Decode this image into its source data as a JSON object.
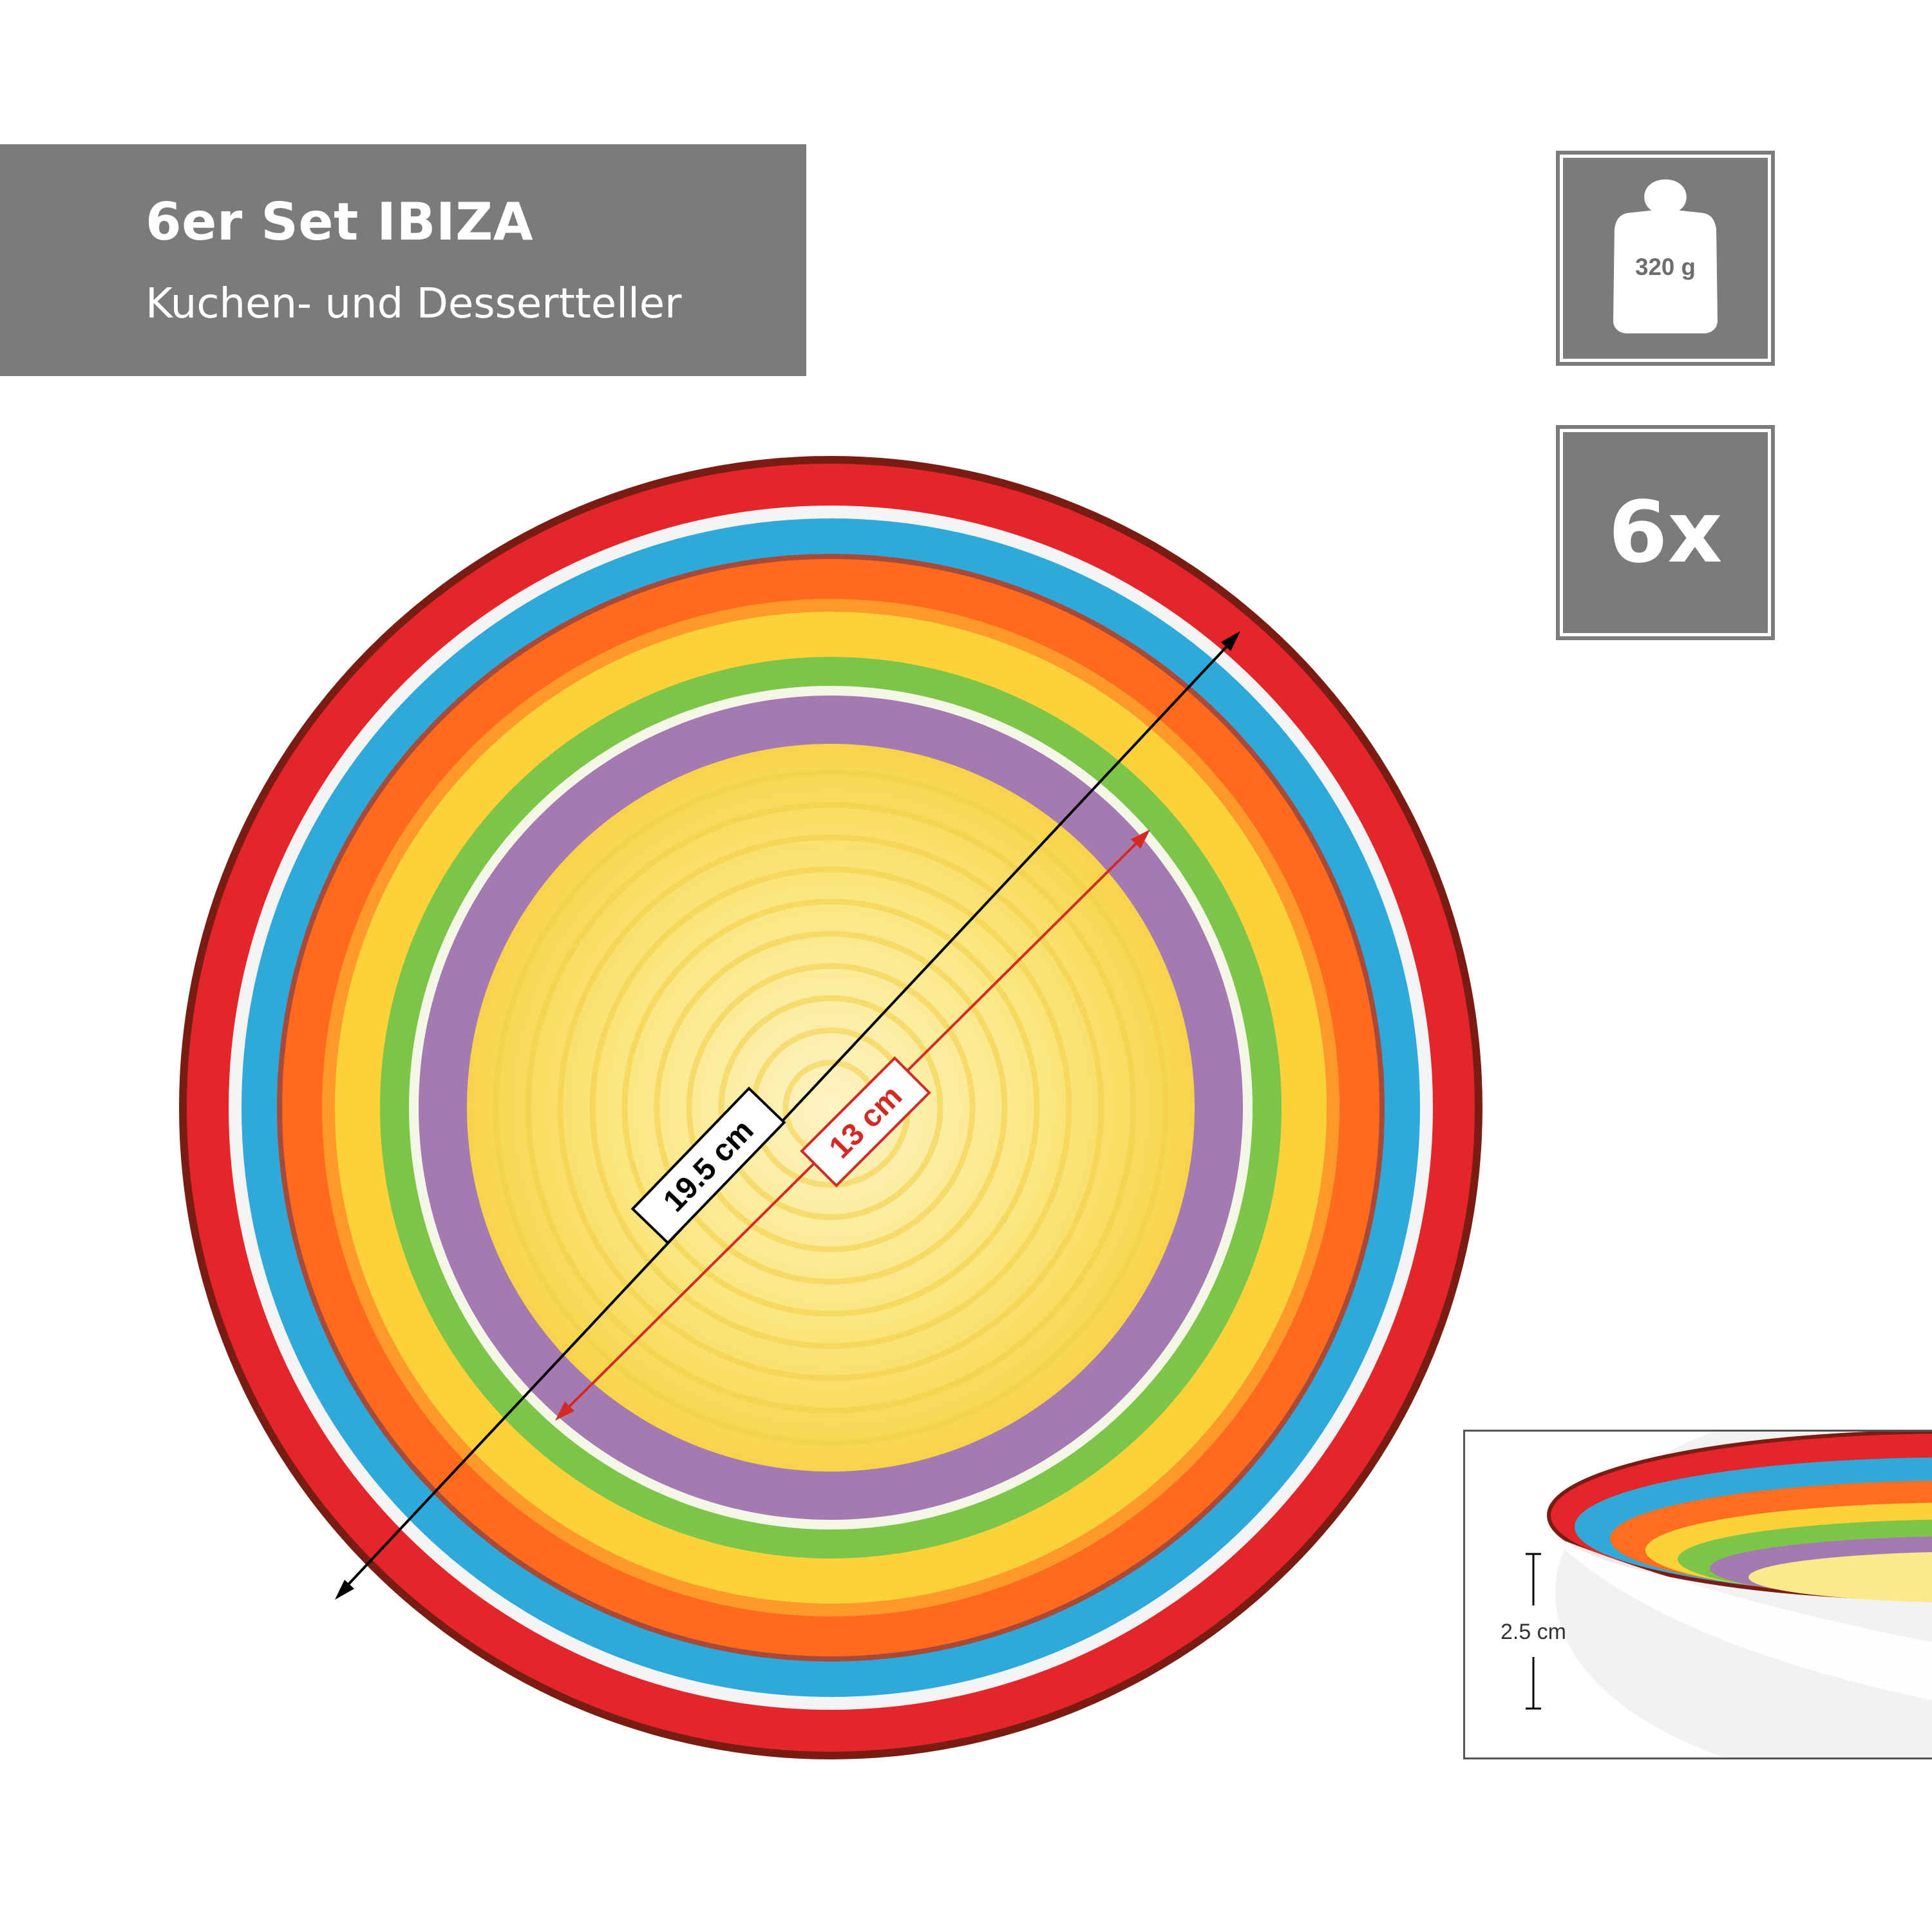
{
  "header": {
    "title": "6er Set IBIZA",
    "subtitle": "Kuchen- und Dessertteller"
  },
  "badges": {
    "weight": {
      "label": "320 g",
      "icon": "weight-icon"
    },
    "count": {
      "label": "6x"
    }
  },
  "dimensions": {
    "diameter": "19.5 cm",
    "inner_diameter": "13 cm",
    "height": "2.5 cm"
  },
  "colors": {
    "badge_gray": "#7b7b7b",
    "rim_red": "#e4262a",
    "stripe_blue": "#30a9d9",
    "stripe_orange": "#ff6e1f",
    "stripe_yellow": "#fcd23a",
    "stripe_green": "#7cc548",
    "stripe_purple": "#a57ab0",
    "center_yellow": "#fbe98a",
    "arrow_black": "#000000",
    "arrow_red": "#d42a26"
  }
}
